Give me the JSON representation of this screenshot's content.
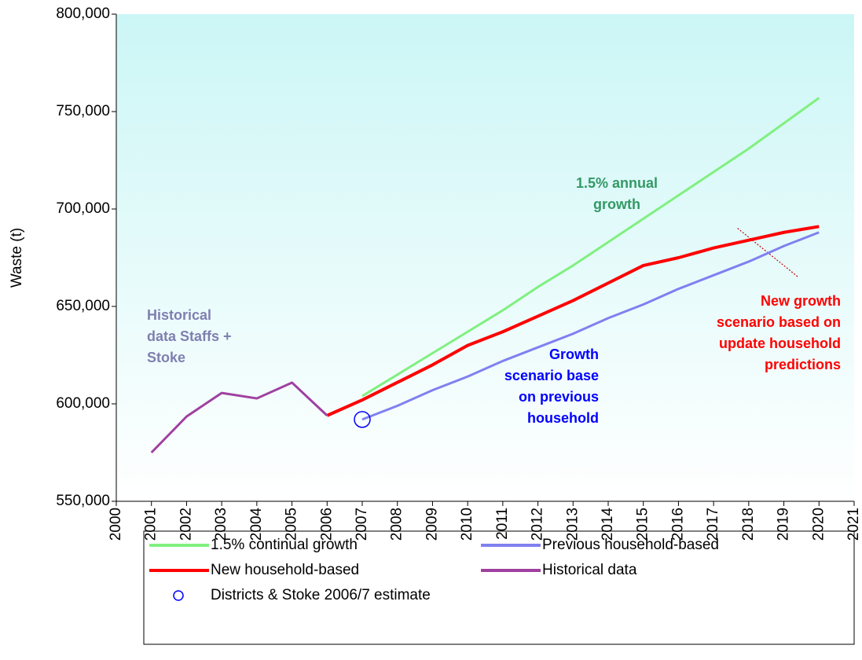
{
  "chart_data": {
    "type": "line",
    "y_label": "Waste (t)",
    "xlim": [
      2000,
      2021
    ],
    "xticks": [
      2000,
      2001,
      2002,
      2003,
      2004,
      2005,
      2006,
      2007,
      2008,
      2009,
      2010,
      2011,
      2012,
      2013,
      2014,
      2015,
      2016,
      2017,
      2018,
      2019,
      2020,
      2021
    ],
    "ylim": [
      550000,
      800000
    ],
    "yticks": [
      {
        "value": 550000,
        "label": "550,000"
      },
      {
        "value": 600000,
        "label": "600,000"
      },
      {
        "value": 650000,
        "label": "650,000"
      },
      {
        "value": 700000,
        "label": "700,000"
      },
      {
        "value": 750000,
        "label": "750,000"
      },
      {
        "value": 800000,
        "label": "800,000"
      }
    ],
    "series": [
      {
        "name": "1.5% continual growth",
        "color": "#80f080",
        "x": [
          2007,
          2008,
          2009,
          2010,
          2011,
          2012,
          2013,
          2014,
          2015,
          2016,
          2017,
          2018,
          2019,
          2020
        ],
        "values": [
          604000,
          615000,
          626000,
          637000,
          648000,
          660000,
          671000,
          683000,
          695000,
          707000,
          719000,
          731000,
          744000,
          757000
        ]
      },
      {
        "name": "Previous household-based",
        "color": "#8080f0",
        "x": [
          2007,
          2008,
          2009,
          2010,
          2011,
          2012,
          2013,
          2014,
          2015,
          2016,
          2017,
          2018,
          2019,
          2020
        ],
        "values": [
          592000,
          599000,
          607000,
          614000,
          622000,
          629000,
          636000,
          644000,
          651000,
          659000,
          666000,
          673000,
          681000,
          688000
        ]
      },
      {
        "name": "New household-based",
        "color": "#ff0000",
        "x": [
          2006,
          2007,
          2008,
          2009,
          2010,
          2011,
          2012,
          2013,
          2014,
          2015,
          2016,
          2017,
          2018,
          2019,
          2020
        ],
        "values": [
          594000,
          602000,
          611000,
          620000,
          630000,
          637000,
          645000,
          653000,
          662000,
          671000,
          675000,
          680000,
          684000,
          688000,
          691000
        ]
      },
      {
        "name": "Historical data",
        "color": "#a040a0",
        "x": [
          2001,
          2002,
          2003,
          2004,
          2005,
          2006
        ],
        "values": [
          575000,
          593500,
          605600,
          602800,
          610900,
          594000
        ]
      },
      {
        "name": "Districts & Stoke 2006/7 estimate",
        "color": "#0000ff",
        "marker": "circle",
        "x": [
          2007
        ],
        "values": [
          592000
        ]
      }
    ],
    "annotations": [
      {
        "lines": [
          "1.5% annual",
          "growth"
        ],
        "color": "#339966"
      },
      {
        "lines": [
          "Historical",
          "data Staffs +",
          "Stoke"
        ],
        "color": "#7f7fb0"
      },
      {
        "lines": [
          "Growth",
          "scenario base",
          "on previous",
          "household"
        ],
        "color": "#0000ff"
      },
      {
        "lines": [
          "New growth",
          "scenario based on",
          "update household",
          "predictions"
        ],
        "color": "#ff0000"
      }
    ]
  }
}
